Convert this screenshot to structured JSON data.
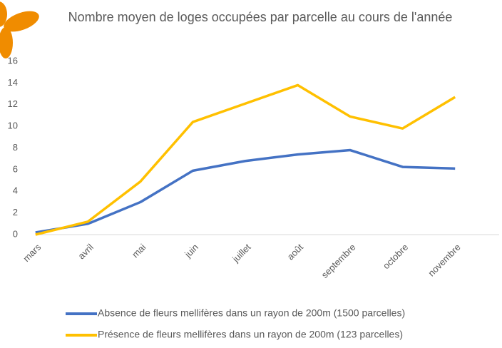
{
  "chart_data": {
    "type": "line",
    "title": "Nombre moyen de loges occupées par parcelle au cours de l'année",
    "categories": [
      "mars",
      "avril",
      "mai",
      "juin",
      "juillet",
      "août",
      "septembre",
      "octobre",
      "novembre"
    ],
    "series": [
      {
        "name": "Absence de fleurs mellifères dans un rayon de 200m (1500 parcelles)",
        "color": "#4472c4",
        "values": [
          0.2,
          1.0,
          3.0,
          5.9,
          6.8,
          7.4,
          7.8,
          6.25,
          6.1
        ]
      },
      {
        "name": "Présence de fleurs mellifères dans un rayon de 200m (123 parcelles)",
        "color": "#ffc000",
        "values": [
          0,
          1.2,
          4.9,
          10.4,
          12.1,
          13.8,
          10.9,
          9.8,
          12.7
        ]
      }
    ],
    "ylim": [
      0,
      16
    ],
    "yticks": [
      0,
      2,
      4,
      6,
      8,
      10,
      12,
      14,
      16
    ],
    "grid": false,
    "legend": "bottom"
  }
}
